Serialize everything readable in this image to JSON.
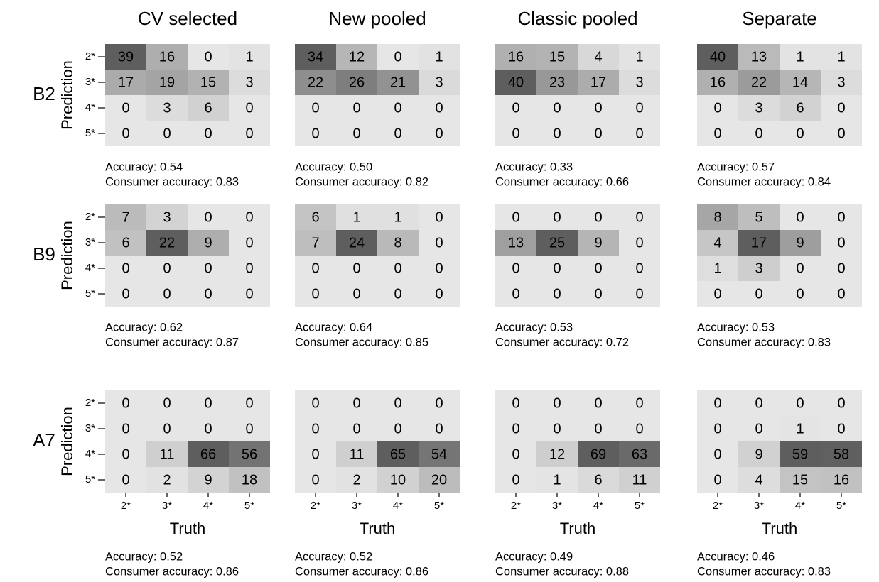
{
  "chart_data": [
    {
      "type": "heatmap",
      "title": "CV selected",
      "row_label": "B2",
      "ylabel": "Prediction",
      "y_categories": [
        "2*",
        "3*",
        "4*",
        "5*"
      ],
      "values": [
        [
          39,
          16,
          0,
          1
        ],
        [
          17,
          19,
          15,
          3
        ],
        [
          0,
          3,
          6,
          0
        ],
        [
          0,
          0,
          0,
          0
        ]
      ],
      "low_color": "#e6e6e6",
      "high_color": "#5e5e5e",
      "annotations": [
        "Accuracy: 0.54",
        "Consumer accuracy: 0.83"
      ]
    },
    {
      "type": "heatmap",
      "title": "New pooled",
      "values": [
        [
          34,
          12,
          0,
          1
        ],
        [
          22,
          26,
          21,
          3
        ],
        [
          0,
          0,
          0,
          0
        ],
        [
          0,
          0,
          0,
          0
        ]
      ],
      "low_color": "#e6e6e6",
      "high_color": "#5e5e5e",
      "annotations": [
        "Accuracy: 0.50",
        "Consumer accuracy: 0.82"
      ]
    },
    {
      "type": "heatmap",
      "title": "Classic pooled",
      "values": [
        [
          16,
          15,
          4,
          1
        ],
        [
          40,
          23,
          17,
          3
        ],
        [
          0,
          0,
          0,
          0
        ],
        [
          0,
          0,
          0,
          0
        ]
      ],
      "low_color": "#e6e6e6",
      "high_color": "#5e5e5e",
      "annotations": [
        "Accuracy: 0.33",
        "Consumer accuracy: 0.66"
      ]
    },
    {
      "type": "heatmap",
      "title": "Separate",
      "values": [
        [
          40,
          13,
          1,
          1
        ],
        [
          16,
          22,
          14,
          3
        ],
        [
          0,
          3,
          6,
          0
        ],
        [
          0,
          0,
          0,
          0
        ]
      ],
      "low_color": "#e6e6e6",
      "high_color": "#5e5e5e",
      "annotations": [
        "Accuracy: 0.57",
        "Consumer accuracy: 0.84"
      ]
    },
    {
      "type": "heatmap",
      "row_label": "B9",
      "ylabel": "Prediction",
      "y_categories": [
        "2*",
        "3*",
        "4*",
        "5*"
      ],
      "values": [
        [
          7,
          3,
          0,
          0
        ],
        [
          6,
          22,
          9,
          0
        ],
        [
          0,
          0,
          0,
          0
        ],
        [
          0,
          0,
          0,
          0
        ]
      ],
      "low_color": "#e6e6e6",
      "high_color": "#5e5e5e",
      "annotations": [
        "Accuracy: 0.62",
        "Consumer accuracy: 0.87"
      ]
    },
    {
      "type": "heatmap",
      "values": [
        [
          6,
          1,
          1,
          0
        ],
        [
          7,
          24,
          8,
          0
        ],
        [
          0,
          0,
          0,
          0
        ],
        [
          0,
          0,
          0,
          0
        ]
      ],
      "low_color": "#e6e6e6",
      "high_color": "#5e5e5e",
      "annotations": [
        "Accuracy: 0.64",
        "Consumer accuracy: 0.85"
      ]
    },
    {
      "type": "heatmap",
      "values": [
        [
          0,
          0,
          0,
          0
        ],
        [
          13,
          25,
          9,
          0
        ],
        [
          0,
          0,
          0,
          0
        ],
        [
          0,
          0,
          0,
          0
        ]
      ],
      "low_color": "#e6e6e6",
      "high_color": "#5e5e5e",
      "annotations": [
        "Accuracy: 0.53",
        "Consumer accuracy: 0.72"
      ]
    },
    {
      "type": "heatmap",
      "values": [
        [
          8,
          5,
          0,
          0
        ],
        [
          4,
          17,
          9,
          0
        ],
        [
          1,
          3,
          0,
          0
        ],
        [
          0,
          0,
          0,
          0
        ]
      ],
      "low_color": "#e6e6e6",
      "high_color": "#5e5e5e",
      "annotations": [
        "Accuracy: 0.53",
        "Consumer accuracy: 0.83"
      ]
    },
    {
      "type": "heatmap",
      "row_label": "A7",
      "ylabel": "Prediction",
      "xlabel": "Truth",
      "y_categories": [
        "2*",
        "3*",
        "4*",
        "5*"
      ],
      "x_categories": [
        "2*",
        "3*",
        "4*",
        "5*"
      ],
      "values": [
        [
          0,
          0,
          0,
          0
        ],
        [
          0,
          0,
          0,
          0
        ],
        [
          0,
          11,
          66,
          56
        ],
        [
          0,
          2,
          9,
          18
        ]
      ],
      "low_color": "#e6e6e6",
      "high_color": "#5e5e5e",
      "annotations": [
        "Accuracy: 0.52",
        "Consumer accuracy: 0.86"
      ]
    },
    {
      "type": "heatmap",
      "xlabel": "Truth",
      "x_categories": [
        "2*",
        "3*",
        "4*",
        "5*"
      ],
      "values": [
        [
          0,
          0,
          0,
          0
        ],
        [
          0,
          0,
          0,
          0
        ],
        [
          0,
          11,
          65,
          54
        ],
        [
          0,
          2,
          10,
          20
        ]
      ],
      "low_color": "#e6e6e6",
      "high_color": "#5e5e5e",
      "annotations": [
        "Accuracy: 0.52",
        "Consumer accuracy: 0.86"
      ]
    },
    {
      "type": "heatmap",
      "xlabel": "Truth",
      "x_categories": [
        "2*",
        "3*",
        "4*",
        "5*"
      ],
      "values": [
        [
          0,
          0,
          0,
          0
        ],
        [
          0,
          0,
          0,
          0
        ],
        [
          0,
          12,
          69,
          63
        ],
        [
          0,
          1,
          6,
          11
        ]
      ],
      "low_color": "#e6e6e6",
      "high_color": "#5e5e5e",
      "annotations": [
        "Accuracy: 0.49",
        "Consumer accuracy: 0.88"
      ]
    },
    {
      "type": "heatmap",
      "xlabel": "Truth",
      "x_categories": [
        "2*",
        "3*",
        "4*",
        "5*"
      ],
      "values": [
        [
          0,
          0,
          0,
          0
        ],
        [
          0,
          0,
          1,
          0
        ],
        [
          0,
          9,
          59,
          58
        ],
        [
          0,
          4,
          15,
          16
        ]
      ],
      "low_color": "#e6e6e6",
      "high_color": "#5e5e5e",
      "annotations": [
        "Accuracy: 0.46",
        "Consumer accuracy: 0.83"
      ]
    }
  ]
}
